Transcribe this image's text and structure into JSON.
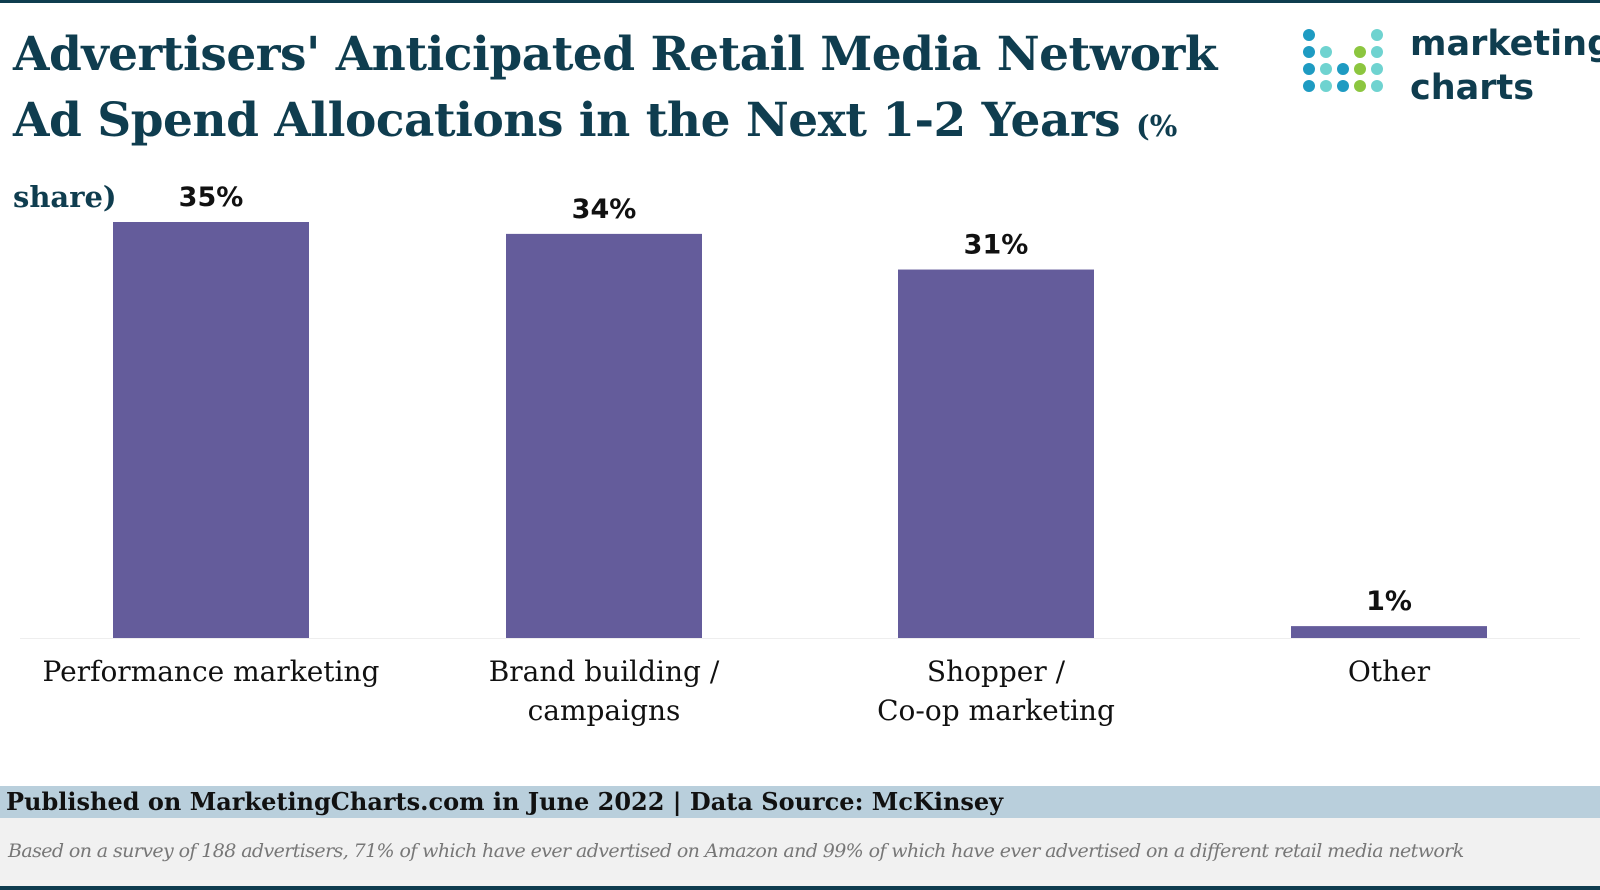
{
  "header": {
    "title_line1": "Advertisers' Anticipated Retail Media Network",
    "title_line2": "Ad Spend Allocations in the Next 1-2 Years",
    "title_unit": "(% share)"
  },
  "logo": {
    "line1": "marketing",
    "line2": "charts",
    "icon": "dot-grid-logo-icon",
    "dot_colors": [
      "#1e9bc2",
      "#6fd3d0",
      "#8cc63f"
    ]
  },
  "chart_data": {
    "type": "bar",
    "categories": [
      [
        "Performance marketing"
      ],
      [
        "Brand building /",
        "campaigns"
      ],
      [
        "Shopper /",
        "Co-op marketing"
      ],
      [
        "Other"
      ]
    ],
    "values": [
      35,
      34,
      31,
      1
    ],
    "value_labels": [
      "35%",
      "34%",
      "31%",
      "1%"
    ],
    "bar_color": "#645c9b",
    "title": "Advertisers' Anticipated Retail Media Network Ad Spend Allocations in the Next 1-2 Years",
    "xlabel": "",
    "ylabel": "",
    "ylim": [
      0,
      35
    ],
    "grid": false,
    "legend": "none"
  },
  "footer": {
    "published": "Published on MarketingCharts.com in June 2022 | Data Source: McKinsey",
    "note": "Based on a survey of 188 advertisers, 71% of which have ever advertised on Amazon and 99% of which have ever advertised on a different retail media network"
  }
}
